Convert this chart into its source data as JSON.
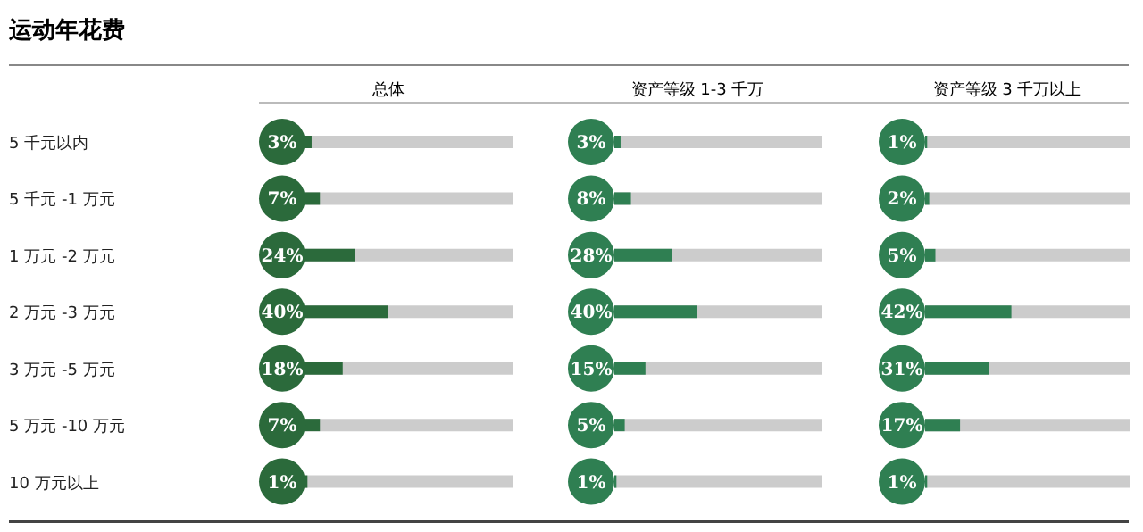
{
  "chart_data": [
    {
      "type": "bar",
      "orientation": "horizontal",
      "title": "运动年花费",
      "subtitle": "总体",
      "categories": [
        "5 千元以内",
        "5 千元 -1 万元",
        "1 万元 -2 万元",
        "2 万元 -3 万元",
        "3 万元 -5 万元",
        "5 万元 -10 万元",
        "10 万元以上"
      ],
      "values": [
        3,
        7,
        24,
        40,
        18,
        7,
        1
      ],
      "value_labels": [
        "3%",
        "7%",
        "24%",
        "40%",
        "18%",
        "7%",
        "1%"
      ],
      "color": "#2b6a3b",
      "xlim": [
        0,
        100
      ],
      "tick_labels": "y",
      "grid": false,
      "legend": false
    },
    {
      "type": "bar",
      "orientation": "horizontal",
      "title": "资产等级 1-3 千万",
      "categories": [
        null,
        null,
        null,
        null,
        null,
        null,
        null
      ],
      "values": [
        3,
        8,
        28,
        40,
        15,
        5,
        1
      ],
      "value_labels": [
        "3%",
        "8%",
        "28%",
        "40%",
        "15%",
        "5%",
        "1%"
      ],
      "color": "#2f7f52",
      "xlim": [
        0,
        100
      ],
      "tick_labels": false,
      "grid": false,
      "legend": false
    },
    {
      "type": "bar",
      "orientation": "horizontal",
      "title": "资产等级 3 千万以上",
      "categories": [
        null,
        null,
        null,
        null,
        null,
        null,
        null
      ],
      "values": [
        1,
        2,
        5,
        42,
        31,
        17,
        1
      ],
      "value_labels": [
        "1%",
        "2%",
        "5%",
        "42%",
        "31%",
        "17%",
        "1%"
      ],
      "color": "#2f7f52",
      "xlim": [
        0,
        100
      ],
      "tick_labels": false,
      "grid": false,
      "legend": false
    }
  ]
}
